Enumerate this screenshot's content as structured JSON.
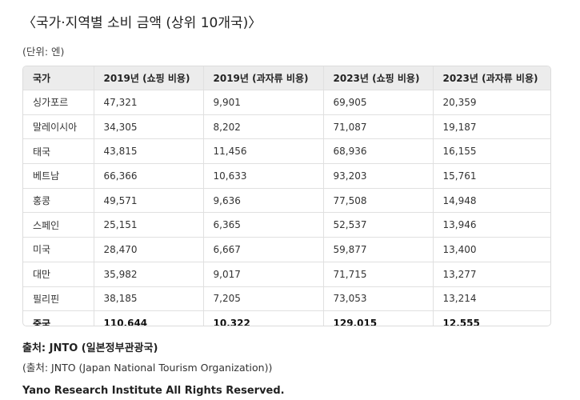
{
  "title": "〈국가·지역별 소비 금액 (상위 10개국)〉",
  "unit": "(단위: 엔)",
  "table": {
    "headers": [
      "국가",
      "2019년 (쇼핑 비용)",
      "2019년 (과자류 비용)",
      "2023년 (쇼핑 비용)",
      "2023년 (과자류 비용)"
    ],
    "rows": [
      [
        "싱가포르",
        "47,321",
        "9,901",
        "69,905",
        "20,359"
      ],
      [
        "말레이시아",
        "34,305",
        "8,202",
        "71,087",
        "19,187"
      ],
      [
        "태국",
        "43,815",
        "11,456",
        "68,936",
        "16,155"
      ],
      [
        "베트남",
        "66,366",
        "10,633",
        "93,203",
        "15,761"
      ],
      [
        "홍콩",
        "49,571",
        "9,636",
        "77,508",
        "14,948"
      ],
      [
        "스페인",
        "25,151",
        "6,365",
        "52,537",
        "13,946"
      ],
      [
        "미국",
        "28,470",
        "6,667",
        "59,877",
        "13,400"
      ],
      [
        "대만",
        "35,982",
        "9,017",
        "71,715",
        "13,277"
      ],
      [
        "필리핀",
        "38,185",
        "7,205",
        "73,053",
        "13,214"
      ],
      [
        "중국",
        "110,644",
        "10,322",
        "129,015",
        "12,555"
      ]
    ]
  },
  "source_ko": "출처: JNTO (일본정부관광국)",
  "source_en": "(출처: JNTO (Japan National Tourism Organization))",
  "copyright": "Yano Research Institute All Rights Reserved."
}
